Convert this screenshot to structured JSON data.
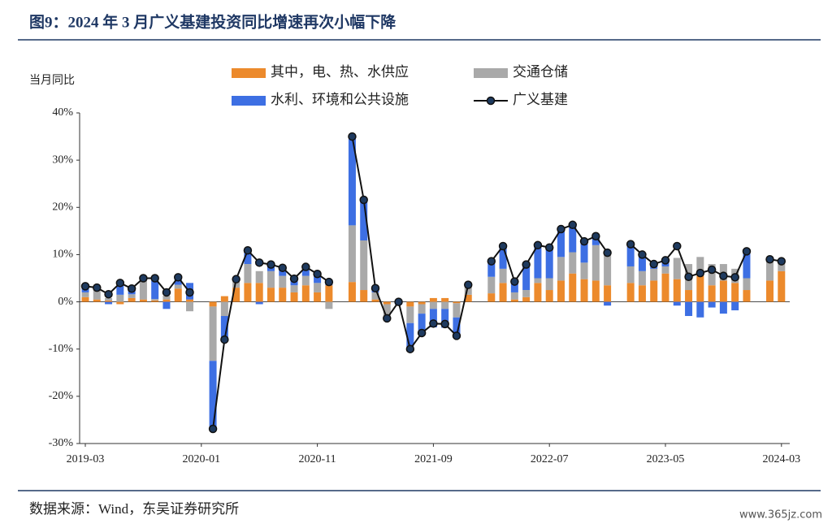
{
  "chart_data": {
    "type": "combo",
    "title": "图9：2024 年 3 月广义基建投资同比增速再次小幅下降",
    "y_label": "当月同比",
    "source": "数据来源：Wind，东吴证券研究所",
    "watermark": "www.365jz.com",
    "categories": [
      "2019-03",
      null,
      null,
      null,
      null,
      null,
      null,
      null,
      null,
      null,
      "2020-01",
      null,
      null,
      null,
      null,
      null,
      null,
      null,
      null,
      null,
      "2020-11",
      null,
      null,
      null,
      null,
      null,
      null,
      null,
      null,
      null,
      "2021-09",
      null,
      null,
      null,
      null,
      null,
      null,
      null,
      null,
      null,
      "2022-07",
      null,
      null,
      null,
      null,
      null,
      null,
      null,
      null,
      null,
      "2023-05",
      null,
      null,
      null,
      null,
      null,
      null,
      null,
      null,
      null,
      "2024-03"
    ],
    "ylim": [
      -30,
      40
    ],
    "yticks": [
      {
        "value": -30,
        "label": "-30%"
      },
      {
        "value": -20,
        "label": "-20%"
      },
      {
        "value": -10,
        "label": "-10%"
      },
      {
        "value": 0,
        "label": "0%"
      },
      {
        "value": 10,
        "label": "10%"
      },
      {
        "value": 20,
        "label": "20%"
      },
      {
        "value": 30,
        "label": "30%"
      },
      {
        "value": 40,
        "label": "40%"
      }
    ],
    "series": [
      {
        "name": "其中，电、热、水供应",
        "type": "bar",
        "color": "#ec8a2c",
        "values": [
          1.0,
          0.5,
          0.3,
          -0.5,
          0.8,
          0.5,
          0.3,
          0.5,
          2.8,
          0.5,
          null,
          -1.0,
          1.2,
          3.0,
          4.0,
          4.0,
          3.0,
          3.0,
          2.0,
          3.5,
          2.0,
          3.5,
          null,
          4.2,
          2.5,
          0.5,
          -0.5,
          -0.3,
          -1.0,
          -0.5,
          0.8,
          0.8,
          -0.3,
          1.5,
          null,
          1.8,
          4.0,
          0.5,
          1.0,
          4.0,
          2.5,
          4.5,
          6.0,
          4.8,
          4.5,
          3.5,
          null,
          4.0,
          3.5,
          4.5,
          6.0,
          4.8,
          2.5,
          5.5,
          3.5,
          4.5,
          4.0,
          2.5,
          null,
          4.5,
          6.5
        ]
      },
      {
        "name": "交通仓储",
        "type": "bar",
        "color": "#a9a9a9",
        "values": [
          1.0,
          2.5,
          0.5,
          1.5,
          0.8,
          4.0,
          0.3,
          0.8,
          0.8,
          -2.0,
          null,
          -11.5,
          -3.0,
          1.5,
          4.0,
          2.5,
          3.5,
          2.5,
          1.5,
          2.0,
          2.0,
          -1.5,
          null,
          12.0,
          10.5,
          1.5,
          -3.0,
          0,
          -3.5,
          -2.0,
          -1.5,
          -1.5,
          -3.0,
          2.0,
          null,
          3.5,
          3.0,
          1.5,
          1.5,
          1.0,
          2.5,
          5.0,
          4.5,
          3.5,
          7.5,
          7.0,
          null,
          3.5,
          3.0,
          2.5,
          1.5,
          4.5,
          5.5,
          4.0,
          4.5,
          3.5,
          3.0,
          2.5,
          null,
          4.5,
          2.0
        ]
      },
      {
        "name": "水利、环境和公共设施",
        "type": "bar",
        "color": "#3d6fe3",
        "values": [
          1.5,
          0,
          -0.5,
          2.0,
          1.0,
          0.5,
          4.5,
          -1.5,
          1.2,
          3.5,
          null,
          -14,
          -5,
          0.3,
          2.9,
          -0.5,
          1.4,
          1.7,
          1.4,
          1.9,
          1.9,
          1.2,
          null,
          18.8,
          8.6,
          0.9,
          0,
          -0.3,
          -5.5,
          -4.1,
          -3.9,
          -4.0,
          -3.9,
          0.1,
          null,
          3.3,
          4.8,
          2.3,
          5.4,
          7.0,
          6.5,
          5.9,
          5.8,
          4.5,
          1.9,
          -0.8,
          null,
          4.7,
          3.5,
          1.0,
          1.3,
          -0.8,
          -3.0,
          -3.3,
          -1.2,
          -2.5,
          -1.8,
          5.7,
          null,
          0,
          0.1
        ]
      },
      {
        "name": "广义基建",
        "type": "line",
        "color": "#111111",
        "marker_color": "#1e3a5f",
        "values": [
          3.3,
          3.0,
          1.6,
          4.0,
          2.8,
          5.0,
          5.0,
          2.0,
          5.2,
          2.0,
          null,
          -26.9,
          -8.0,
          4.8,
          10.9,
          8.3,
          7.9,
          7.2,
          4.9,
          7.4,
          5.9,
          4.2,
          null,
          35.0,
          21.6,
          2.9,
          -3.5,
          0,
          -10.0,
          -6.6,
          -4.6,
          -4.7,
          -7.2,
          3.6,
          null,
          8.6,
          11.8,
          4.3,
          7.9,
          12.0,
          11.5,
          15.4,
          16.3,
          12.8,
          13.9,
          10.4,
          null,
          12.2,
          10.0,
          8.0,
          8.8,
          11.8,
          5.3,
          6.1,
          6.8,
          5.5,
          5.2,
          10.7,
          null,
          9.0,
          8.6
        ]
      }
    ]
  }
}
